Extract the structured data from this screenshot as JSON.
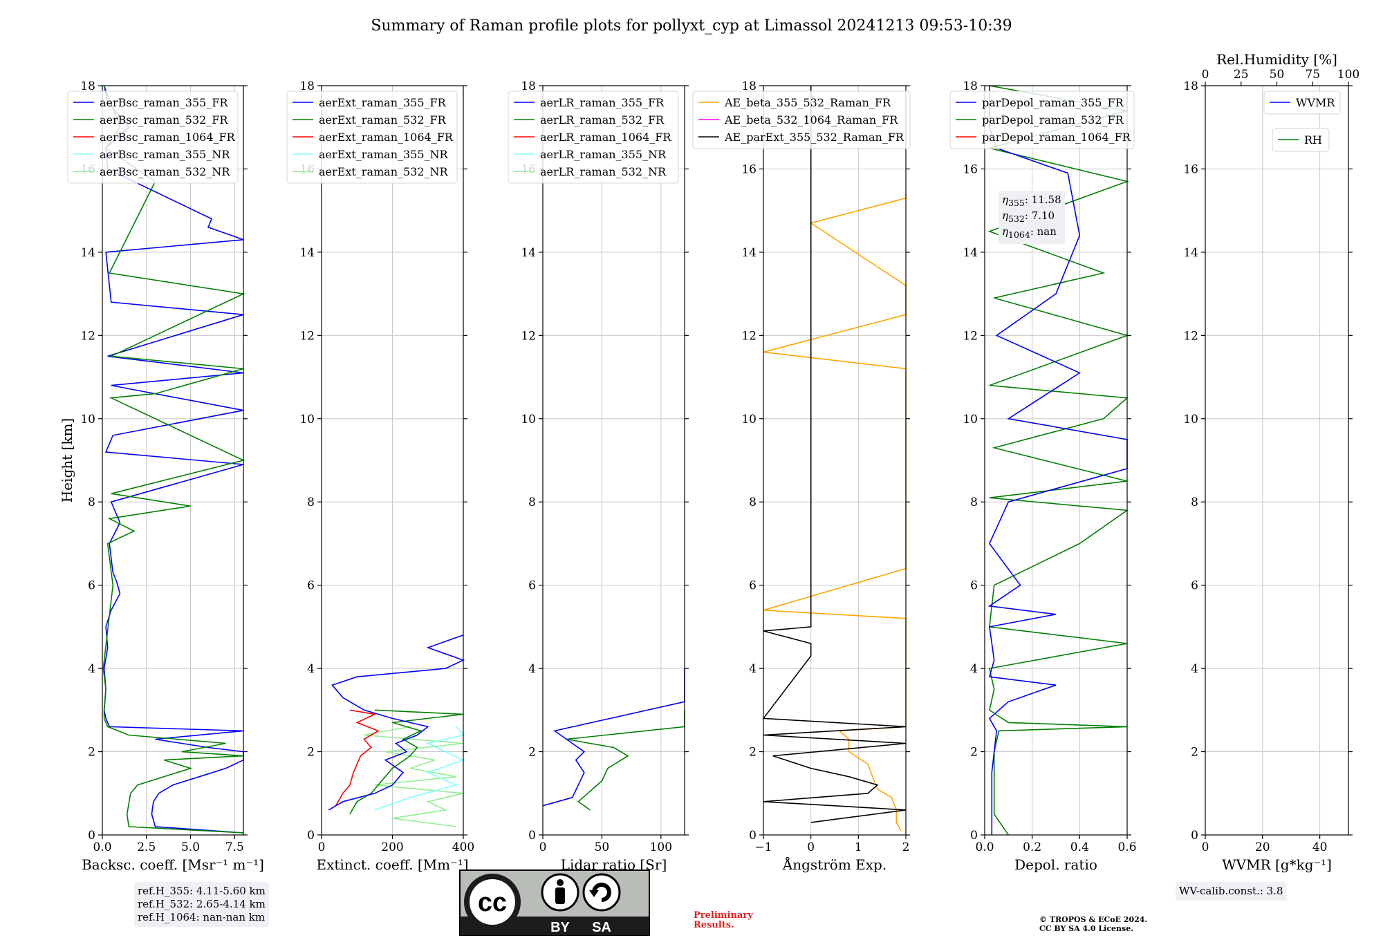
{
  "figure_title": "Summary of Raman profile plots for pollyxt_cyp at Limassol 20241213 09:53-10:39",
  "colors": {
    "blue": "#0000ff",
    "green": "#008000",
    "red": "#ff0000",
    "cyan": "#7fffff",
    "lightgreen": "#90ee90",
    "orange": "#ffa500",
    "magenta": "#ff00ff",
    "black": "#000000",
    "grid": "#c8c8c8"
  },
  "chart_data": [
    {
      "type": "line",
      "id": "bsc",
      "xlabel": "Backsc. coeff. [Msr⁻¹ m⁻¹]",
      "ylabel": "Height [km]",
      "xlim": [
        0,
        8
      ],
      "ylim": [
        0,
        18
      ],
      "xticks": [
        0,
        2.5,
        5,
        7.5
      ],
      "xticklabels": [
        "0.0",
        "2.5",
        "5.0",
        "7.5"
      ],
      "yticks": [
        0,
        2,
        4,
        6,
        8,
        10,
        12,
        14,
        16,
        18
      ],
      "legend": [
        "aerBsc_raman_355_FR",
        "aerBsc_raman_532_FR",
        "aerBsc_raman_1064_FR",
        "aerBsc_raman_355_NR",
        "aerBsc_raman_532_NR"
      ],
      "legend_colors": [
        "#0000ff",
        "#008000",
        "#ff0000",
        "#7fffff",
        "#90ee90"
      ],
      "series": [
        {
          "name": "aerBsc_raman_355_FR",
          "color": "#0000ff",
          "y": [
            0.05,
            0.2,
            0.5,
            0.8,
            1.0,
            1.2,
            1.4,
            1.6,
            1.8,
            2.0,
            2.1,
            2.3,
            2.5,
            2.6,
            2.8,
            3.0,
            3.5,
            4.0,
            4.5,
            5.0,
            5.4,
            5.8,
            6.1,
            6.3,
            7.0,
            7.5,
            8.0,
            8.9,
            9.2,
            9.6,
            10.2,
            10.8,
            11.1,
            11.5,
            12.5,
            12.8,
            13.2,
            14.0,
            14.3,
            14.6,
            14.8,
            16.0,
            16.5,
            17.0,
            17.6,
            18.0
          ],
          "x": [
            8.0,
            3.0,
            2.8,
            2.9,
            3.2,
            4.0,
            5.5,
            7.0,
            8.0,
            8.0,
            6.0,
            3.0,
            8.0,
            0.4,
            0.2,
            0.1,
            0.2,
            0.1,
            0.3,
            0.2,
            0.5,
            1.0,
            0.8,
            0.6,
            0.4,
            1.0,
            0.5,
            8.0,
            0.2,
            0.6,
            8.0,
            0.5,
            8.0,
            0.3,
            8.0,
            0.5,
            0.4,
            0.2,
            8.0,
            6.0,
            6.2,
            0.3,
            0.2,
            1.5,
            0.3,
            0.1
          ]
        },
        {
          "name": "aerBsc_raman_532_FR",
          "color": "#008000",
          "y": [
            0.05,
            0.2,
            0.5,
            1.0,
            1.2,
            1.6,
            1.8,
            1.9,
            2.0,
            2.2,
            2.4,
            2.6,
            2.8,
            3.0,
            3.5,
            4.0,
            6.0,
            7.0,
            7.3,
            7.6,
            7.9,
            8.2,
            9.0,
            10.5,
            10.6,
            11.2,
            11.5,
            12.0,
            13.0,
            13.5,
            15.7,
            16.5,
            17.0,
            18.0
          ],
          "x": [
            8.0,
            1.5,
            1.4,
            1.6,
            2.0,
            5.0,
            3.5,
            8.0,
            4.5,
            7.0,
            1.5,
            0.3,
            0.1,
            0.1,
            0.2,
            0.05,
            0.6,
            0.3,
            1.8,
            0.4,
            5.0,
            0.5,
            8.0,
            0.5,
            3.0,
            8.0,
            0.5,
            3.0,
            8.0,
            0.4,
            3.0,
            0.2,
            1.0,
            0.1
          ]
        }
      ]
    },
    {
      "type": "line",
      "id": "ext",
      "xlabel": "Extinct. coeff. [Mm⁻¹]",
      "xlim": [
        0,
        400
      ],
      "ylim": [
        0,
        18
      ],
      "xticks": [
        0,
        200,
        400
      ],
      "xticklabels": [
        "0",
        "200",
        "400"
      ],
      "yticks": [
        0,
        2,
        4,
        6,
        8,
        10,
        12,
        14,
        16,
        18
      ],
      "legend": [
        "aerExt_raman_355_FR",
        "aerExt_raman_532_FR",
        "aerExt_raman_1064_FR",
        "aerExt_raman_355_NR",
        "aerExt_raman_532_NR"
      ],
      "legend_colors": [
        "#0000ff",
        "#008000",
        "#ff0000",
        "#7fffff",
        "#90ee90"
      ],
      "series": [
        {
          "name": "aerExt_raman_532_NR",
          "color": "#90ee90",
          "y": [
            0.2,
            0.4,
            0.6,
            0.8,
            1.0,
            1.2,
            1.4,
            1.6,
            1.8,
            2.0,
            2.2,
            2.4,
            2.6
          ],
          "x": [
            380,
            200,
            350,
            300,
            400,
            150,
            380,
            250,
            320,
            180,
            400,
            120,
            250
          ]
        },
        {
          "name": "aerExt_raman_355_NR",
          "color": "#7fffff",
          "y": [
            0.6,
            0.9,
            1.2,
            1.5,
            1.8,
            2.0,
            2.2,
            2.4,
            2.6
          ],
          "x": [
            150,
            250,
            380,
            300,
            400,
            350,
            300,
            400,
            380
          ]
        },
        {
          "name": "aerExt_raman_1064_FR",
          "color": "#ff0000",
          "y": [
            0.7,
            1.0,
            1.2,
            1.5,
            1.7,
            1.9,
            2.1,
            2.3,
            2.5,
            2.7,
            2.9,
            3.0
          ],
          "x": [
            40,
            60,
            80,
            90,
            100,
            110,
            140,
            120,
            160,
            100,
            150,
            80
          ]
        },
        {
          "name": "aerExt_raman_532_FR",
          "color": "#008000",
          "y": [
            0.5,
            0.8,
            1.0,
            1.3,
            1.6,
            1.9,
            2.1,
            2.3,
            2.5,
            2.7,
            2.9,
            3.0
          ],
          "x": [
            80,
            100,
            140,
            170,
            200,
            250,
            270,
            230,
            280,
            200,
            400,
            150
          ]
        },
        {
          "name": "aerExt_raman_355_FR",
          "color": "#0000ff",
          "y": [
            0.6,
            0.8,
            1.0,
            1.2,
            1.5,
            1.8,
            2.0,
            2.2,
            2.4,
            2.6,
            2.8,
            3.0,
            3.3,
            3.6,
            3.8,
            4.0,
            4.2,
            4.5,
            4.8
          ],
          "x": [
            20,
            60,
            150,
            200,
            230,
            180,
            240,
            210,
            270,
            300,
            200,
            120,
            60,
            30,
            100,
            350,
            400,
            300,
            400
          ]
        }
      ]
    },
    {
      "type": "line",
      "id": "lr",
      "xlabel": "Lidar ratio [Sr]",
      "xlim": [
        0,
        120
      ],
      "ylim": [
        0,
        18
      ],
      "xticks": [
        0,
        50,
        100
      ],
      "xticklabels": [
        "0",
        "50",
        "100"
      ],
      "yticks": [
        0,
        2,
        4,
        6,
        8,
        10,
        12,
        14,
        16,
        18
      ],
      "legend": [
        "aerLR_raman_355_FR",
        "aerLR_raman_532_FR",
        "aerLR_raman_1064_FR",
        "aerLR_raman_355_NR",
        "aerLR_raman_532_NR"
      ],
      "legend_colors": [
        "#0000ff",
        "#008000",
        "#ff0000",
        "#7fffff",
        "#90ee90"
      ],
      "series": [
        {
          "name": "aerLR_raman_532_FR",
          "color": "#008000",
          "y": [
            0.6,
            0.8,
            1.0,
            1.3,
            1.6,
            1.9,
            2.1,
            2.3,
            2.6,
            2.8,
            3.0
          ],
          "x": [
            40,
            30,
            38,
            50,
            55,
            72,
            60,
            20,
            120,
            120,
            120
          ]
        },
        {
          "name": "aerLR_raman_355_FR",
          "color": "#0000ff",
          "y": [
            0.7,
            0.9,
            1.2,
            1.5,
            1.8,
            2.0,
            2.3,
            2.5,
            3.2,
            3.5,
            3.8,
            4.0
          ],
          "x": [
            0,
            25,
            30,
            35,
            28,
            35,
            20,
            10,
            120,
            120,
            120,
            120
          ]
        }
      ]
    },
    {
      "type": "line",
      "id": "ae",
      "xlabel": "Ångström Exp.",
      "xlim": [
        -1,
        2
      ],
      "ylim": [
        0,
        18
      ],
      "xticks": [
        -1,
        0,
        1,
        2
      ],
      "xticklabels": [
        "−1",
        "0",
        "1",
        "2"
      ],
      "yticks": [
        0,
        2,
        4,
        6,
        8,
        10,
        12,
        14,
        16,
        18
      ],
      "legend": [
        "AE_beta_355_532_Raman_FR",
        "AE_beta_532_1064_Raman_FR",
        "AE_parExt_355_532_Raman_FR"
      ],
      "legend_colors": [
        "#ffa500",
        "#ff00ff",
        "#000000"
      ],
      "series": [
        {
          "name": "AE_beta_355_532_Raman_FR",
          "color": "#ffa500",
          "y": [
            0.1,
            0.3,
            0.6,
            0.9,
            1.1,
            1.4,
            1.7,
            2.0,
            2.3,
            2.5,
            2.6,
            3.6,
            4.1,
            5.2,
            5.4,
            6.4,
            7.4,
            7.8,
            8.7,
            9.3,
            9.7,
            10.1,
            11.2,
            11.6,
            12.5,
            12.8,
            13.2,
            14.7,
            15.3,
            15.4
          ],
          "x": [
            1.9,
            1.8,
            1.8,
            1.7,
            1.4,
            1.3,
            1.2,
            0.8,
            0.8,
            0.6,
            2.0,
            2.0,
            2.0,
            2.0,
            -1.0,
            2.0,
            2.0,
            2.0,
            2.0,
            2.0,
            2.0,
            2.0,
            2.0,
            -1.0,
            2.0,
            2.0,
            2.0,
            0.0,
            2.0,
            2.0
          ]
        },
        {
          "name": "AE_parExt_355_532_Raman_FR",
          "color": "#000000",
          "y": [
            0.3,
            0.6,
            0.8,
            1.0,
            1.2,
            1.4,
            1.6,
            1.9,
            2.2,
            2.4,
            2.6,
            2.8,
            4.3,
            4.6,
            4.9,
            5.0,
            18.0
          ],
          "x": [
            0.0,
            2.0,
            -1.0,
            1.2,
            1.4,
            0.8,
            0.0,
            -0.8,
            2.0,
            -1.0,
            2.0,
            -1.0,
            0.0,
            0.0,
            -1.0,
            0.0,
            0.0
          ]
        }
      ]
    },
    {
      "type": "line",
      "id": "dep",
      "xlabel": "Depol. ratio",
      "xlim": [
        0,
        0.6
      ],
      "ylim": [
        0,
        18
      ],
      "xticks": [
        0,
        0.2,
        0.4,
        0.6
      ],
      "xticklabels": [
        "0.0",
        "0.2",
        "0.4",
        "0.6"
      ],
      "yticks": [
        0,
        2,
        4,
        6,
        8,
        10,
        12,
        14,
        16,
        18
      ],
      "legend": [
        "parDepol_raman_355_FR",
        "parDepol_raman_532_FR",
        "parDepol_raman_1064_FR"
      ],
      "legend_colors": [
        "#0000ff",
        "#008000",
        "#ff0000"
      ],
      "series": [
        {
          "name": "parDepol_raman_532_FR",
          "color": "#008000",
          "y": [
            0.0,
            0.5,
            1.0,
            1.5,
            2.0,
            2.5,
            2.6,
            2.7,
            3.0,
            3.5,
            4.0,
            4.6,
            5.0,
            6.0,
            7.0,
            7.8,
            8.1,
            8.5,
            9.3,
            10.0,
            10.5,
            10.8,
            12.0,
            12.9,
            13.5,
            14.5,
            15.7,
            16.5,
            17.4,
            18.0
          ],
          "x": [
            0.1,
            0.04,
            0.04,
            0.04,
            0.04,
            0.06,
            0.6,
            0.1,
            0.02,
            0.04,
            0.02,
            0.6,
            0.02,
            0.04,
            0.4,
            0.6,
            0.02,
            0.6,
            0.04,
            0.5,
            0.6,
            0.02,
            0.6,
            0.04,
            0.5,
            0.02,
            0.6,
            0.02,
            0.6,
            0.02
          ]
        },
        {
          "name": "parDepol_raman_355_FR",
          "color": "#0000ff",
          "y": [
            0.0,
            0.5,
            1.0,
            1.5,
            2.0,
            2.5,
            2.8,
            3.2,
            3.6,
            3.8,
            4.2,
            5.0,
            5.3,
            5.5,
            6.0,
            7.0,
            8.0,
            8.8,
            9.5,
            10.0,
            11.1,
            12.0,
            13.0,
            14.4,
            15.9,
            16.5,
            17.0,
            18.0
          ],
          "x": [
            0.03,
            0.03,
            0.03,
            0.03,
            0.04,
            0.05,
            0.02,
            0.1,
            0.3,
            0.02,
            0.04,
            0.02,
            0.3,
            0.02,
            0.15,
            0.02,
            0.1,
            0.6,
            0.6,
            0.1,
            0.4,
            0.05,
            0.3,
            0.4,
            0.35,
            0.05,
            0.02,
            0.02
          ]
        }
      ]
    },
    {
      "type": "line",
      "id": "wv",
      "xlabel": "WVMR [g*kg⁻¹]",
      "top_xlabel": "Rel.Humidity [%]",
      "xlim": [
        0,
        50
      ],
      "ylim": [
        0,
        18
      ],
      "xticks": [
        0,
        20,
        40
      ],
      "xticklabels": [
        "0",
        "20",
        "40"
      ],
      "top_xlim": [
        0,
        100
      ],
      "top_xticks": [
        0,
        25,
        50,
        75,
        100
      ],
      "top_xticklabels": [
        "0",
        "25",
        "50",
        "75",
        "100"
      ],
      "yticks": [
        0,
        2,
        4,
        6,
        8,
        10,
        12,
        14,
        16,
        18
      ],
      "legend": [
        "WVMR"
      ],
      "legend_colors": [
        "#0000ff"
      ],
      "legend2": [
        "RH"
      ],
      "legend2_colors": [
        "#008000"
      ],
      "series": []
    }
  ],
  "eta_box": {
    "eta355": ": 11.58",
    "eta532": ": 7.10",
    "eta1064": ": nan"
  },
  "refh_box": {
    "l1": "ref.H_355: 4.11-5.60 km",
    "l2": "ref.H_532: 2.65-4.14 km",
    "l3": "ref.H_1064: nan-nan km"
  },
  "wv_box": "WV-calib.const.: 3.8",
  "preliminary": {
    "l1": "Preliminary",
    "l2": "Results."
  },
  "copyright": {
    "l1": "© TROPOS & ECoE 2024.",
    "l2": "CC BY SA 4.0 License."
  },
  "cc_logo": {
    "cc": "cc",
    "by": "BY",
    "sa": "SA"
  }
}
